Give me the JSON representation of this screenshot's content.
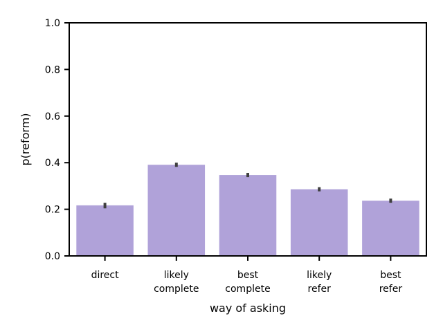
{
  "chart_data": {
    "type": "bar",
    "title": "",
    "xlabel": "way of asking",
    "ylabel": "p(reform)",
    "categories": [
      [
        "direct"
      ],
      [
        "likely",
        "complete"
      ],
      [
        "best",
        "complete"
      ],
      [
        "likely",
        "refer"
      ],
      [
        "best",
        "refer"
      ]
    ],
    "values": [
      0.217,
      0.391,
      0.347,
      0.286,
      0.237
    ],
    "errors": [
      [
        0.204,
        0.228
      ],
      [
        0.382,
        0.4
      ],
      [
        0.338,
        0.356
      ],
      [
        0.277,
        0.295
      ],
      [
        0.228,
        0.246
      ]
    ],
    "ylim": [
      0,
      1.0
    ],
    "yticks": [
      0.0,
      0.2,
      0.4,
      0.6,
      0.8,
      1.0
    ],
    "ytick_labels": [
      "0.0",
      "0.2",
      "0.4",
      "0.6",
      "0.8",
      "1.0"
    ],
    "grid": false,
    "colors": {
      "bar": "#b0a2d9",
      "error": "#3f3f3f",
      "axis": "#000000"
    }
  }
}
